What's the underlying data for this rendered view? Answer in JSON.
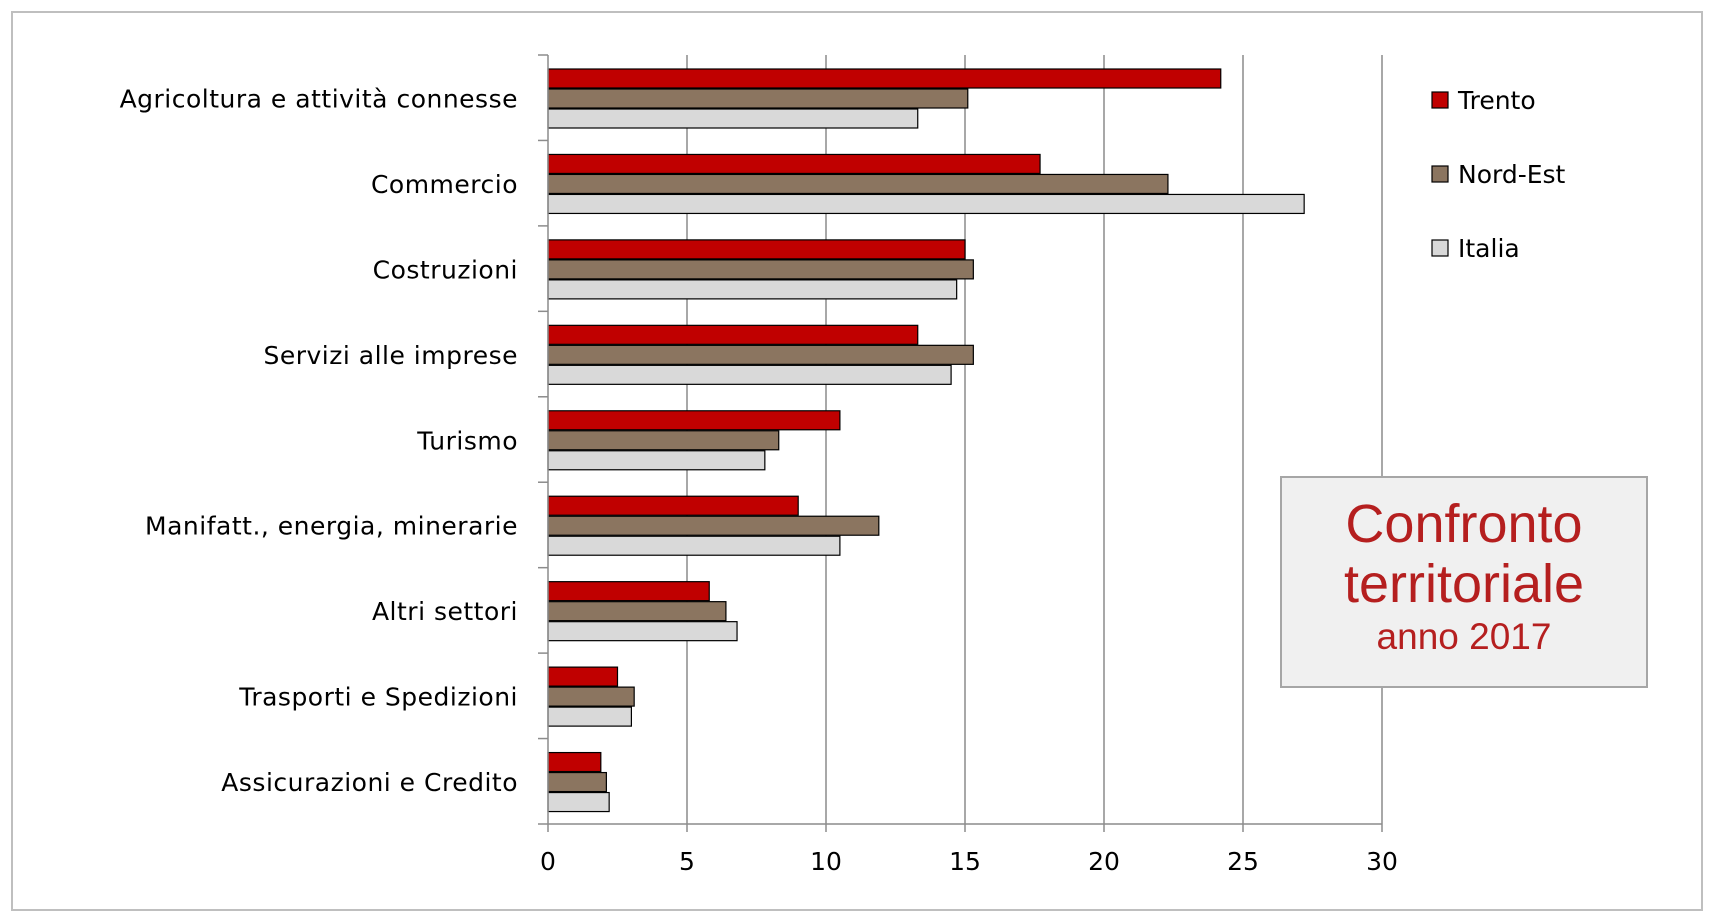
{
  "chart_data": {
    "type": "bar",
    "orientation": "horizontal",
    "categories": [
      "Agricoltura e attività connesse",
      "Commercio",
      "Costruzioni",
      "Servizi alle imprese",
      "Turismo",
      "Manifatt., energia, minerarie",
      "Altri settori",
      "Trasporti e Spedizioni",
      "Assicurazioni e Credito"
    ],
    "series": [
      {
        "name": "Trento",
        "color": "#c00000",
        "values": [
          24.2,
          17.7,
          15.0,
          13.3,
          10.5,
          9.0,
          5.8,
          2.5,
          1.9
        ]
      },
      {
        "name": "Nord-Est",
        "color": "#8b7560",
        "values": [
          15.1,
          22.3,
          15.3,
          15.3,
          8.3,
          11.9,
          6.4,
          3.1,
          2.1
        ]
      },
      {
        "name": "Italia",
        "color": "#d9d9d9",
        "values": [
          13.3,
          27.2,
          14.7,
          14.5,
          7.8,
          10.5,
          6.8,
          3.0,
          2.2
        ]
      }
    ],
    "xlim": [
      0,
      30
    ],
    "xticks": [
      "0",
      "5",
      "10",
      "15",
      "20",
      "25",
      "30"
    ],
    "grid": true,
    "legend_position": "top-right"
  },
  "annotation": {
    "line1": "Confronto",
    "line2": "territoriale",
    "line3": "anno 2017"
  }
}
